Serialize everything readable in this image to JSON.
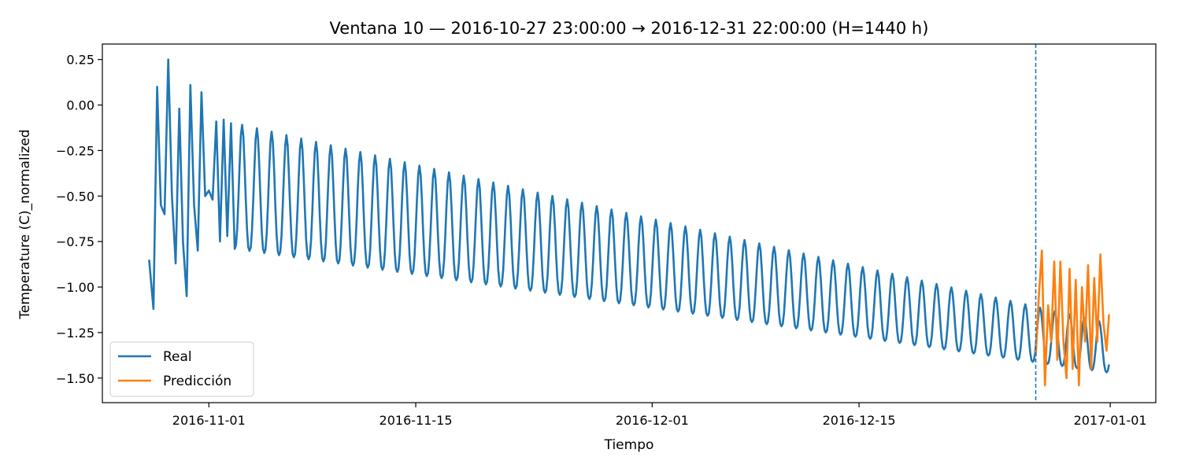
{
  "chart_data": {
    "type": "line",
    "title": "Ventana 10 — 2016-10-27 23:00:00 → 2016-12-31 22:00:00 (H=1440 h)",
    "xlabel": "Tiempo",
    "ylabel": "Temperature (C)_normalized",
    "x_range": [
      "2016-10-27 23:00:00",
      "2016-12-31 22:00:00"
    ],
    "xlim": [
      "2016-10-24 19:00:00",
      "2017-01-04 02:00:00"
    ],
    "ylim": [
      -1.635,
      0.335
    ],
    "x_ticks": [
      "2016-11-01",
      "2016-11-15",
      "2016-12-01",
      "2016-12-15",
      "2017-01-01"
    ],
    "y_ticks": [
      0.25,
      0.0,
      -0.25,
      -0.5,
      -0.75,
      -1.0,
      -1.25,
      -1.5
    ],
    "y_tick_labels": [
      "0.25",
      "0.00",
      "−0.25",
      "−0.50",
      "−0.75",
      "−1.00",
      "−1.25",
      "−1.50"
    ],
    "forecast_start": "2016-12-26 23:00:00",
    "grid": false,
    "legend_position": "lower-left",
    "legend": [
      "Real",
      "Predicción"
    ],
    "series": [
      {
        "name": "Real",
        "color": "#1f77b4",
        "x": [
          "2016-10-27 23:00",
          "2016-10-28 06:00",
          "2016-10-28 12:00",
          "2016-10-28 18:00",
          "2016-10-29 00:00",
          "2016-10-29 06:00",
          "2016-10-29 12:00",
          "2016-10-29 18:00",
          "2016-10-30 00:00",
          "2016-10-30 06:00",
          "2016-10-30 12:00",
          "2016-10-30 18:00",
          "2016-10-31 00:00",
          "2016-10-31 06:00",
          "2016-10-31 12:00",
          "2016-10-31 18:00",
          "2016-11-01 00:00",
          "2016-11-01 06:00",
          "2016-11-01 12:00",
          "2016-11-01 18:00",
          "2016-11-02 00:00",
          "2016-11-02 06:00",
          "2016-11-02 12:00",
          "2016-11-02 18:00"
        ],
        "y": [
          -0.85,
          -1.12,
          0.1,
          -0.55,
          -0.6,
          0.25,
          -0.5,
          -0.87,
          -0.02,
          -0.75,
          -1.05,
          0.11,
          -0.55,
          -0.8,
          0.07,
          -0.5,
          -0.47,
          -0.52,
          -0.09,
          -0.75,
          -0.08,
          -0.72,
          -0.1,
          -0.79
        ],
        "daily_cycle_from": "2016-11-02 18:00",
        "daily_cycle_to": "2016-12-31 22:00",
        "daily_peak_trend": [
          -0.1,
          -1.2
        ],
        "daily_trough_trend": [
          -0.79,
          -1.47
        ]
      },
      {
        "name": "Predicción",
        "color": "#ff7f0e",
        "x": [
          "2016-12-26 23:00",
          "2016-12-27 04:00",
          "2016-12-27 09:00",
          "2016-12-27 14:00",
          "2016-12-27 19:00",
          "2016-12-28 00:00",
          "2016-12-28 05:00",
          "2016-12-28 10:00",
          "2016-12-28 15:00",
          "2016-12-28 20:00",
          "2016-12-29 01:00",
          "2016-12-29 06:00",
          "2016-12-29 11:00",
          "2016-12-29 16:00",
          "2016-12-29 21:00",
          "2016-12-30 02:00",
          "2016-12-30 07:00",
          "2016-12-30 12:00",
          "2016-12-30 17:00",
          "2016-12-30 22:00",
          "2016-12-31 03:00",
          "2016-12-31 08:00",
          "2016-12-31 13:00",
          "2016-12-31 18:00",
          "2016-12-31 22:00"
        ],
        "y": [
          -1.38,
          -1.05,
          -0.8,
          -1.54,
          -1.1,
          -1.3,
          -0.86,
          -1.4,
          -0.86,
          -1.3,
          -1.5,
          -0.9,
          -1.45,
          -0.96,
          -1.54,
          -1.0,
          -1.3,
          -0.88,
          -1.45,
          -0.95,
          -1.3,
          -0.82,
          -1.2,
          -1.35,
          -1.15
        ]
      }
    ]
  }
}
